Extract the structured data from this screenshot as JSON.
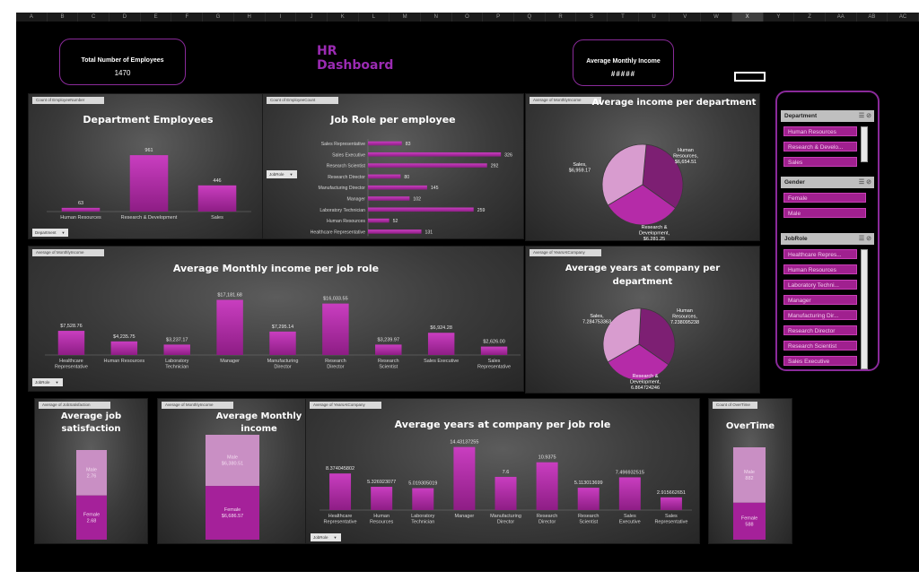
{
  "sheet": {
    "columns": [
      "A",
      "B",
      "C",
      "D",
      "E",
      "F",
      "G",
      "H",
      "I",
      "J",
      "K",
      "L",
      "M",
      "N",
      "O",
      "P",
      "Q",
      "R",
      "S",
      "T",
      "U",
      "V",
      "W",
      "X",
      "Y",
      "Z",
      "AA",
      "AB",
      "AC"
    ],
    "selected_column": "X"
  },
  "dashboard": {
    "title": "HR Dashboard",
    "kpi_total_label": "Total Number of Employees",
    "kpi_total_value": "1470",
    "kpi_income_label": "Average Monthly Income",
    "kpi_income_value": "#####"
  },
  "colors": {
    "accent": "#9b2bb3",
    "bar": "#b32aa8",
    "slicer_item": "#a0208f",
    "pie": [
      "#7d1f73",
      "#b52ba8",
      "#d89ccf"
    ]
  },
  "panels": {
    "dept_employees": {
      "tag": "Count of EmployeeNumber",
      "title": "Department Employees",
      "filter": "Department",
      "chart_data": {
        "type": "bar",
        "categories": [
          "Human Resources",
          "Research & Development",
          "Sales"
        ],
        "values": [
          63,
          961,
          446
        ],
        "labels": [
          "63",
          "961",
          "446"
        ],
        "ylim": [
          0,
          1100
        ]
      }
    },
    "job_role": {
      "tag": "Count of EmployeeCount",
      "title": "Job Role per employee",
      "filter": "JobRole",
      "chart_data": {
        "type": "bar",
        "orientation": "horizontal",
        "categories": [
          "Sales Representative",
          "Sales Executive",
          "Research Scientist",
          "Research Director",
          "Manufacturing Director",
          "Manager",
          "Laboratory Technician",
          "Human Resources",
          "Healthcare Representative"
        ],
        "values": [
          83,
          326,
          292,
          80,
          145,
          102,
          259,
          52,
          131
        ],
        "labels": [
          "83",
          "326",
          "292",
          "80",
          "145",
          "102",
          "259",
          "52",
          "131"
        ],
        "xlim": [
          0,
          330
        ]
      }
    },
    "avg_income_dept": {
      "tag": "Average of MonthlyIncome",
      "title": "Average income per department",
      "chart_data": {
        "type": "pie",
        "categories": [
          "Human Resources",
          "Research & Development",
          "Sales"
        ],
        "values": [
          6654.51,
          6281.25,
          6959.17
        ],
        "labels": [
          "Human Resources, $6,654.51",
          "Research & Development, $6,281.25",
          "Sales, $6,959.17"
        ]
      }
    },
    "avg_income_role": {
      "tag": "Average of MonthlyIncome",
      "title": "Average Monthly income per job role",
      "filter": "JobRole",
      "chart_data": {
        "type": "bar",
        "categories": [
          "Healthcare Representative",
          "Human Resources",
          "Laboratory Technician",
          "Manager",
          "Manufacturing Director",
          "Research Director",
          "Research Scientist",
          "Sales Executive",
          "Sales Representative"
        ],
        "values": [
          7528.76,
          4235.75,
          3237.17,
          17181.68,
          7295.14,
          16033.55,
          3239.97,
          6924.28,
          2626.0
        ],
        "labels": [
          "$7,528.76",
          "$4,235.75",
          "$3,237.17",
          "$17,181.68",
          "$7,295.14",
          "$16,033.55",
          "$3,239.97",
          "$6,924.28",
          "$2,626.00"
        ],
        "ylim": [
          0,
          19000
        ]
      }
    },
    "years_dept": {
      "tag": "Average of YearsAtCompany",
      "title": "Average years at company per department",
      "chart_data": {
        "type": "pie",
        "categories": [
          "Human Resources",
          "Research & Development",
          "Sales"
        ],
        "values": [
          7.238095238,
          6.864724246,
          7.284753363
        ],
        "labels": [
          "Human Resources, 7.238095238",
          "Research & Development, 6.864724246",
          "Sales, 7.284753363"
        ]
      }
    },
    "job_satisfaction": {
      "tag": "Average of JobSatisfaction",
      "title": "Average job satisfaction",
      "chart_data": {
        "type": "bar",
        "stacked": true,
        "categories": [
          "Male",
          "Female"
        ],
        "values": [
          2.76,
          2.68
        ],
        "labels": [
          "Male\n2.76",
          "Female\n2.68"
        ]
      }
    },
    "monthly_income_gender": {
      "tag": "Average of MonthlyIncome",
      "title": "Average Monthly income",
      "chart_data": {
        "type": "bar",
        "stacked": true,
        "categories": [
          "Male",
          "Female"
        ],
        "values": [
          6380.51,
          6686.57
        ],
        "labels": [
          "Male\n$6,380.51",
          "Female\n$6,686.57"
        ]
      }
    },
    "years_role": {
      "tag": "Average of YearsAtCompany",
      "title": "Average years at company per job role",
      "filter": "JobRole",
      "chart_data": {
        "type": "bar",
        "categories": [
          "Healthcare Representative",
          "Human Resources",
          "Laboratory Technician",
          "Manager",
          "Manufacturing Director",
          "Research Director",
          "Research Scientist",
          "Sales Executive",
          "Sales Representative"
        ],
        "values": [
          8.374045802,
          5.326923077,
          5.019305019,
          14.43137255,
          7.6,
          10.9375,
          5.113013699,
          7.496932515,
          2.915662651
        ],
        "labels": [
          "8.374045802",
          "5.326923077",
          "5.019305019",
          "14.43137255",
          "7.6",
          "10.9375",
          "5.113013699",
          "7.496932515",
          "2.915662651"
        ],
        "ylim": [
          0,
          16
        ]
      }
    },
    "overtime": {
      "tag": "Count of OverTime",
      "title": "OverTime",
      "chart_data": {
        "type": "bar",
        "stacked": true,
        "categories": [
          "Male",
          "Female"
        ],
        "values": [
          882,
          588
        ],
        "labels": [
          "Male\n882",
          "Female\n588"
        ]
      }
    }
  },
  "slicers": {
    "department": {
      "header": "Department",
      "items": [
        "Human Resources",
        "Research & Develo...",
        "Sales"
      ]
    },
    "gender": {
      "header": "Gender",
      "items": [
        "Female",
        "Male"
      ]
    },
    "jobrole": {
      "header": "JobRole",
      "items": [
        "Healthcare Repres...",
        "Human Resources",
        "Laboratory Techni...",
        "Manager",
        "Manufacturing Dir...",
        "Research Director",
        "Research Scientist",
        "Sales Executive"
      ]
    }
  }
}
